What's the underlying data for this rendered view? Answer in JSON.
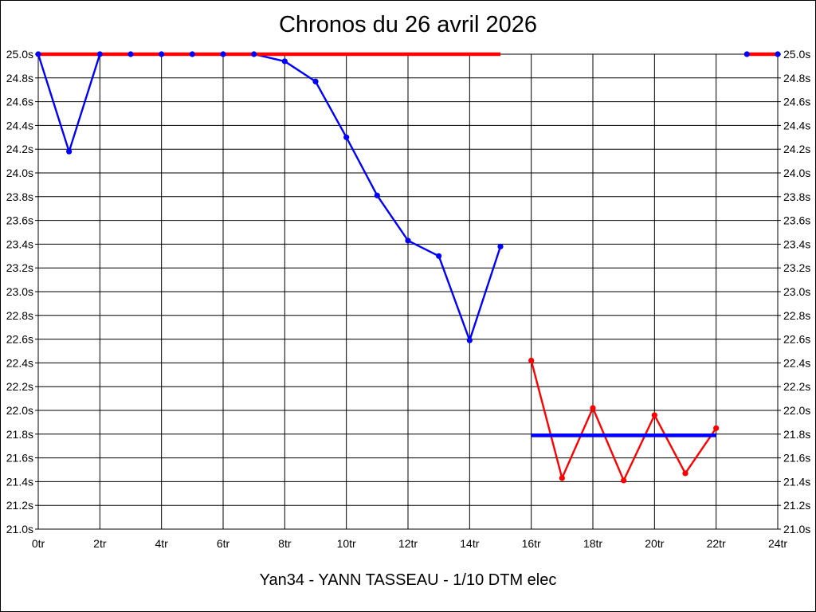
{
  "chart_data": {
    "type": "line",
    "title": "Chronos du 26 avril 2026",
    "subtitle": "Yan34 - YANN TASSEAU - 1/10 DTM elec",
    "x_unit": "tr",
    "y_unit": "s",
    "xlim": [
      0,
      24
    ],
    "ylim": [
      21.0,
      25.0
    ],
    "grid": true,
    "x_ticks": [
      0,
      2,
      4,
      6,
      8,
      10,
      12,
      14,
      16,
      18,
      20,
      22,
      24
    ],
    "x_tick_labels": [
      "0tr",
      "2tr",
      "4tr",
      "6tr",
      "8tr",
      "10tr",
      "12tr",
      "14tr",
      "16tr",
      "18tr",
      "20tr",
      "22tr",
      "24tr"
    ],
    "y_ticks": [
      25.0,
      24.8,
      24.6,
      24.4,
      24.2,
      24.0,
      23.8,
      23.6,
      23.4,
      23.2,
      23.0,
      22.8,
      22.6,
      22.4,
      22.2,
      22.0,
      21.8,
      21.6,
      21.4,
      21.2,
      21.0
    ],
    "y_tick_labels": [
      "25.0s",
      "24.8s",
      "24.6s",
      "24.4s",
      "24.2s",
      "24.0s",
      "23.8s",
      "23.6s",
      "23.4s",
      "23.2s",
      "23.0s",
      "22.8s",
      "22.6s",
      "22.4s",
      "22.2s",
      "22.0s",
      "21.8s",
      "21.6s",
      "21.4s",
      "21.2s",
      "21.0s"
    ],
    "series": [
      {
        "name": "lap-times-blue",
        "color": "#0000ff",
        "marker": true,
        "thick": false,
        "x": [
          0,
          1,
          2,
          3,
          4,
          5,
          6,
          7,
          8,
          9,
          10,
          11,
          12,
          13,
          14,
          15
        ],
        "y": [
          25.0,
          24.18,
          25.0,
          25.0,
          25.0,
          25.0,
          25.0,
          25.0,
          24.94,
          24.77,
          24.3,
          23.81,
          23.43,
          23.3,
          22.59,
          23.38
        ]
      },
      {
        "name": "lap-times-blue-end",
        "color": "#0000ff",
        "marker": true,
        "thick": false,
        "x": [
          23,
          24
        ],
        "y": [
          25.0,
          25.0
        ]
      },
      {
        "name": "reference-line-red-1",
        "color": "#ff0000",
        "marker": false,
        "thick": true,
        "x": [
          0,
          15
        ],
        "y": [
          25.0,
          25.0
        ]
      },
      {
        "name": "reference-line-red-2",
        "color": "#ff0000",
        "marker": false,
        "thick": true,
        "x": [
          23,
          24
        ],
        "y": [
          25.0,
          25.0
        ]
      },
      {
        "name": "lap-times-red",
        "color": "#ff0000",
        "marker": true,
        "thick": false,
        "x": [
          16,
          17,
          18,
          19,
          20,
          21,
          22
        ],
        "y": [
          22.42,
          21.43,
          22.02,
          21.41,
          21.96,
          21.47,
          21.85
        ]
      },
      {
        "name": "reference-line-blue",
        "color": "#0000ff",
        "marker": false,
        "thick": true,
        "x": [
          16,
          22
        ],
        "y": [
          21.79,
          21.79
        ]
      }
    ],
    "colors": {
      "blue_series": "#0000ff",
      "red_series": "#ff0000",
      "grid": "#000000",
      "text": "#000000",
      "background": "#ffffff"
    }
  }
}
